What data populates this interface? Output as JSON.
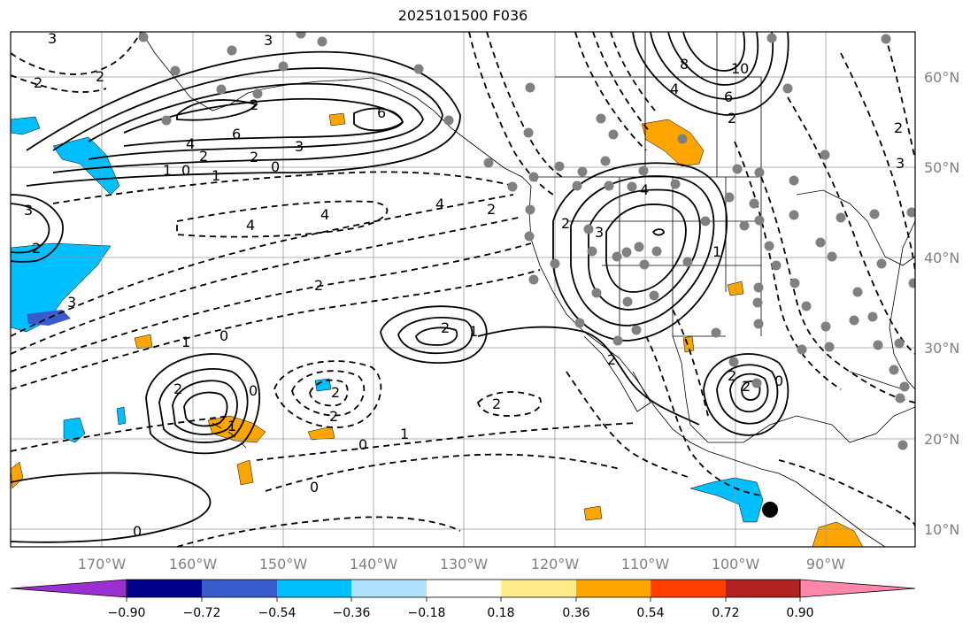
{
  "title": "2025101500 F036",
  "map": {
    "lon_ticks": [
      "170°W",
      "160°W",
      "150°W",
      "140°W",
      "130°W",
      "120°W",
      "110°W",
      "100°W",
      "90°W"
    ],
    "lat_ticks": [
      "60°N",
      "50°N",
      "40°N",
      "30°N",
      "20°N",
      "10°N"
    ],
    "contour_labels": [
      "3",
      "2",
      "3",
      "2",
      "6",
      "6",
      "4",
      "2",
      "2",
      "3",
      "10",
      "8",
      "6",
      "4",
      "2",
      "2",
      "0",
      "1",
      "0",
      "1",
      "4",
      "4",
      "3",
      "3",
      "2",
      "2",
      "1",
      "0",
      "4",
      "2",
      "3",
      "2",
      "2",
      "1",
      "0",
      "2",
      "1",
      "2",
      "2",
      "0",
      "1",
      "0",
      "2",
      "0",
      "2",
      "4",
      "1",
      "2",
      "3",
      "2",
      "0",
      "2"
    ]
  },
  "colorbar": {
    "tick_labels": [
      "−0.90",
      "−0.72",
      "−0.54",
      "−0.36",
      "−0.18",
      "0.18",
      "0.36",
      "0.54",
      "0.72",
      "0.90"
    ],
    "colors": [
      "#9b30d0",
      "#00008b",
      "#3a5bcb",
      "#00bfff",
      "#aee2ff",
      "#ffffff",
      "#ffec8b",
      "#ffa500",
      "#ff3e00",
      "#b22222",
      "#ff88aa"
    ]
  },
  "colors": {
    "positive_fill": "#ffa500",
    "negative_fill": "#00bfff",
    "deep_negative": "#3a5bcb",
    "marker": "#808080"
  }
}
